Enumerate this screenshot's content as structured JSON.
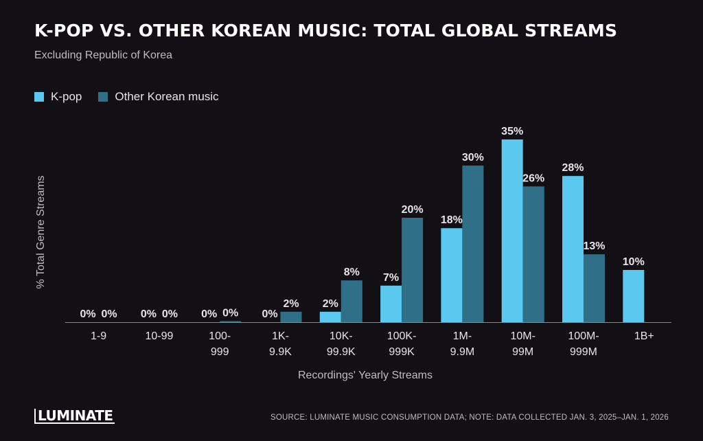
{
  "header": {
    "title": "K-POP VS. OTHER KOREAN MUSIC: TOTAL GLOBAL STREAMS",
    "subtitle": "Excluding Republic of Korea"
  },
  "legend": [
    {
      "label": "K-pop",
      "color": "#5bc8ef"
    },
    {
      "label": "Other Korean music",
      "color": "#2f7088"
    }
  ],
  "footer": {
    "logo": "LUMINATE",
    "source": "SOURCE: LUMINATE MUSIC CONSUMPTION DATA; NOTE: DATA COLLECTED JAN. 3, 2025–JAN. 1, 2026"
  },
  "chart_data": {
    "type": "bar",
    "title": "K-POP VS. OTHER KOREAN MUSIC: TOTAL GLOBAL STREAMS",
    "subtitle": "Excluding Republic of Korea",
    "xlabel": "Recordings' Yearly Streams",
    "ylabel": "% Total Genre Streams",
    "categories": [
      [
        "1-9"
      ],
      [
        "10-99"
      ],
      [
        "100-",
        "999"
      ],
      [
        "1K-",
        "9.9K"
      ],
      [
        "10K-",
        "99.9K"
      ],
      [
        "100K-",
        "999K"
      ],
      [
        "1M-",
        "9.9M"
      ],
      [
        "10M-",
        "99M"
      ],
      [
        "100M-",
        "999M"
      ],
      [
        "1B+"
      ]
    ],
    "ylim": [
      0,
      35
    ],
    "grid": false,
    "legend_position": "top-left",
    "series": [
      {
        "name": "K-pop",
        "color": "#5bc8ef",
        "values": [
          0,
          0,
          0,
          0,
          2,
          7,
          18,
          35,
          28,
          10
        ],
        "labels": [
          "0%",
          "0%",
          "0%",
          "0%",
          "2%",
          "7%",
          "18%",
          "35%",
          "28%",
          "10%"
        ]
      },
      {
        "name": "Other Korean music",
        "color": "#2f7088",
        "values": [
          0,
          0,
          0.2,
          2,
          8,
          20,
          30,
          26,
          13,
          null
        ],
        "labels": [
          "0%",
          "0%",
          "0%",
          "2%",
          "8%",
          "20%",
          "30%",
          "26%",
          "13%",
          null
        ]
      }
    ]
  }
}
